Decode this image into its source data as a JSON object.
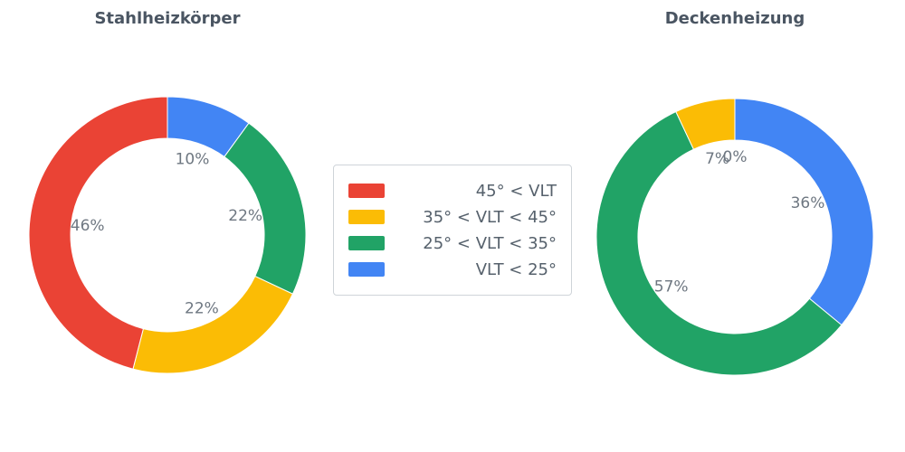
{
  "figure": {
    "background": "#ffffff",
    "title_color": "#4a5562",
    "value_label_color": "#6e7781"
  },
  "legend": {
    "items": [
      {
        "label": "45° < VLT",
        "color": "#EA4335"
      },
      {
        "label": "35° < VLT < 45°",
        "color": "#FBBC05"
      },
      {
        "label": "25° < VLT < 35°",
        "color": "#21A366"
      },
      {
        "label": "VLT < 25°",
        "color": "#4285F4"
      }
    ]
  },
  "chart_data": [
    {
      "type": "pie",
      "title": "Stahlheizkörper",
      "hole": 0.7,
      "start": "top",
      "direction": "counterclockwise",
      "labels": [
        "45° < VLT",
        "35° < VLT < 45°",
        "25° < VLT < 35°",
        "VLT < 25°"
      ],
      "values": [
        46,
        22,
        22,
        10
      ],
      "value_labels": [
        "46%",
        "22%",
        "22%",
        "10%"
      ],
      "colors": [
        "#EA4335",
        "#FBBC05",
        "#21A366",
        "#4285F4"
      ]
    },
    {
      "type": "pie",
      "title": "Deckenheizung",
      "hole": 0.7,
      "start": "top",
      "direction": "counterclockwise",
      "labels": [
        "45° < VLT",
        "35° < VLT < 45°",
        "25° < VLT < 35°",
        "VLT < 25°"
      ],
      "values": [
        0,
        7,
        57,
        36
      ],
      "value_labels": [
        "0%",
        "7%",
        "57%",
        "36%"
      ],
      "colors": [
        "#EA4335",
        "#FBBC05",
        "#21A366",
        "#4285F4"
      ]
    }
  ]
}
